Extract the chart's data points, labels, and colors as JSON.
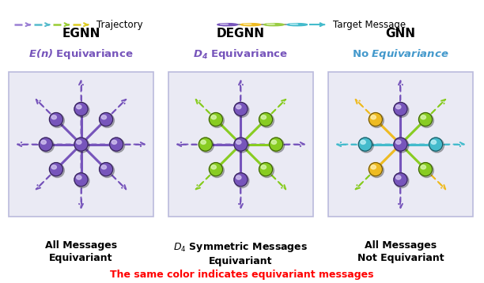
{
  "panel_titles": [
    "EGNN",
    "DEGNN",
    "GNN"
  ],
  "subtitle_lines": [
    [
      "italic_purple",
      "E(n)",
      " Equivariance"
    ],
    [
      "italic_purple",
      "D_4",
      " Equivariance"
    ],
    [
      "mixed_blue",
      "No",
      " Equivariance"
    ]
  ],
  "bottom_labels": [
    "All Messages\nEquivariant",
    "$D_4$ Symmetric Messages\nEquivariant",
    "All Messages\nNot Equivariant"
  ],
  "footer_text": "The same color indicates equivariant messages",
  "purple": "#7755BB",
  "green": "#88CC22",
  "cyan": "#44BBCC",
  "yellow": "#EEBB22",
  "panel_bg": "#eaeaf4",
  "panel_border": "#bbbbdd",
  "node_colors_panel1": {
    "center": "#7755BB",
    "n": "#7755BB",
    "ne": "#7755BB",
    "e": "#7755BB",
    "se": "#7755BB",
    "s": "#7755BB",
    "sw": "#7755BB",
    "w": "#7755BB",
    "nw": "#7755BB"
  },
  "node_colors_panel2": {
    "center": "#7755BB",
    "n": "#7755BB",
    "ne": "#88CC22",
    "e": "#88CC22",
    "se": "#88CC22",
    "s": "#7755BB",
    "sw": "#88CC22",
    "w": "#88CC22",
    "nw": "#88CC22"
  },
  "node_colors_panel3": {
    "center": "#7755BB",
    "n": "#7755BB",
    "ne": "#88CC22",
    "e": "#44BBCC",
    "se": "#88CC22",
    "s": "#7755BB",
    "sw": "#EEBB22",
    "w": "#44BBCC",
    "nw": "#EEBB22"
  },
  "traj_colors": [
    "#9B7FD4",
    "#55BBCC",
    "#99CC33",
    "#DDCC22"
  ],
  "legend_nodes": [
    "#7755BB",
    "#EEBB22",
    "#99CC44",
    "#44BBCC"
  ]
}
